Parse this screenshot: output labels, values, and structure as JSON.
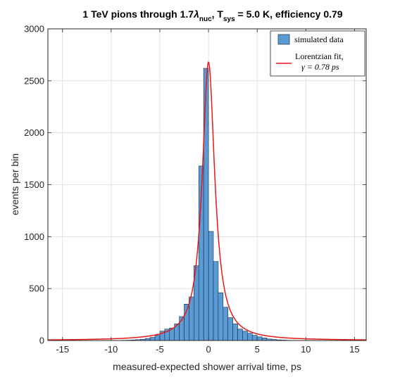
{
  "chart_data": {
    "type": "bar",
    "title": {
      "prefix": "1 TeV pions through 1.7",
      "lambda": "λ",
      "lambda_sub": "nuc",
      "mid": ",  T",
      "t_sub": "sys",
      "suffix": " = 5.0 K, efficiency 0.79"
    },
    "xlabel": "measured-expected shower arrival time, ps",
    "ylabel": "events per bin",
    "xlim": [
      -16.5,
      16.2
    ],
    "ylim": [
      0,
      3000
    ],
    "xticks": [
      -15,
      -10,
      -5,
      0,
      5,
      10,
      15
    ],
    "yticks": [
      0,
      500,
      1000,
      1500,
      2000,
      2500,
      3000
    ],
    "grid": true,
    "legend_position": "top-right",
    "bar_color": "#5b9bd5",
    "fit_color": "#e81818",
    "bin_width": 0.5,
    "bins": [
      [
        -9.0,
        2
      ],
      [
        -8.5,
        3
      ],
      [
        -8.0,
        5
      ],
      [
        -7.5,
        8
      ],
      [
        -7.0,
        12
      ],
      [
        -6.5,
        20
      ],
      [
        -6.0,
        30
      ],
      [
        -5.5,
        50
      ],
      [
        -5.0,
        90
      ],
      [
        -4.5,
        110
      ],
      [
        -4.0,
        120
      ],
      [
        -3.5,
        160
      ],
      [
        -3.0,
        230
      ],
      [
        -2.5,
        350
      ],
      [
        -2.0,
        420
      ],
      [
        -1.5,
        720
      ],
      [
        -1.0,
        1680
      ],
      [
        -0.5,
        2620
      ],
      [
        0.0,
        1050
      ],
      [
        0.5,
        760
      ],
      [
        1.0,
        460
      ],
      [
        1.5,
        320
      ],
      [
        2.0,
        220
      ],
      [
        2.5,
        160
      ],
      [
        3.0,
        110
      ],
      [
        3.5,
        90
      ],
      [
        4.0,
        70
      ],
      [
        4.5,
        50
      ],
      [
        5.0,
        35
      ],
      [
        5.5,
        25
      ],
      [
        6.0,
        15
      ],
      [
        6.5,
        10
      ],
      [
        7.0,
        6
      ],
      [
        7.5,
        4
      ],
      [
        8.0,
        2
      ]
    ],
    "series": [
      {
        "name": "simulated data"
      },
      {
        "name": "Lorentzian fit,",
        "name_line2": "γ = 0.78 ps"
      }
    ],
    "fit": {
      "center": 0,
      "gamma": 0.78,
      "peak": 2680
    }
  }
}
